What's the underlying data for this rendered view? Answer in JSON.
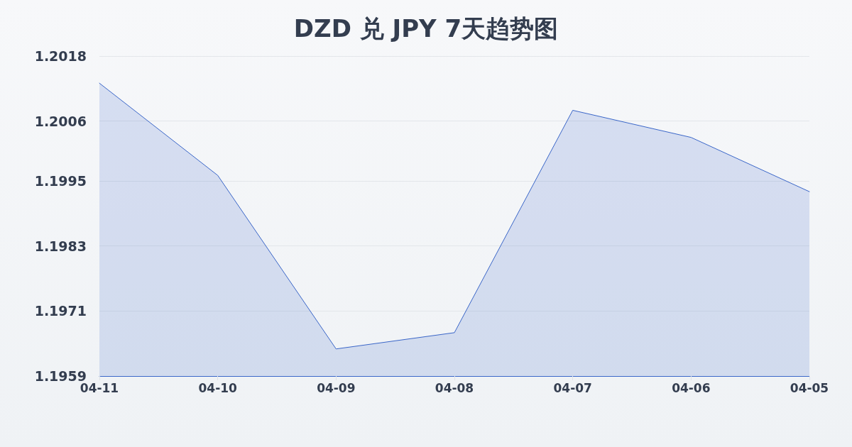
{
  "chart_data": {
    "type": "area",
    "title": "DZD 兑 JPY 7天趋势图",
    "categories": [
      "04-11",
      "04-10",
      "04-09",
      "04-08",
      "04-07",
      "04-06",
      "04-05"
    ],
    "values": [
      1.2013,
      1.1996,
      1.1964,
      1.1967,
      1.2008,
      1.2003,
      1.1993
    ],
    "color": "#3a66c8",
    "ylim": [
      1.1959,
      1.2018
    ],
    "yticks": [
      1.1959,
      1.1971,
      1.1983,
      1.1995,
      1.2006,
      1.2018
    ],
    "grid": "y",
    "marker": "none"
  }
}
